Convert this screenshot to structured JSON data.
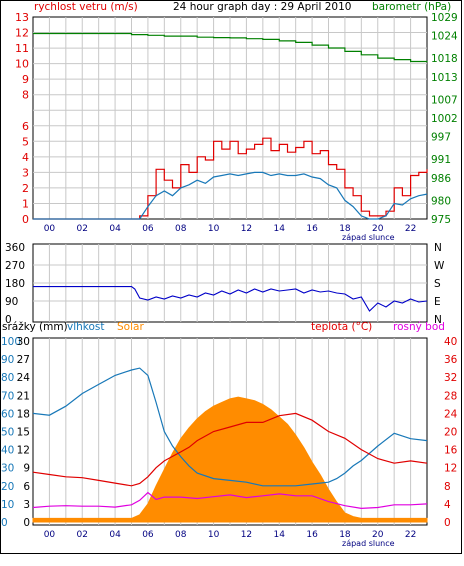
{
  "chart_data": [
    {
      "type": "line",
      "title": "24 hour graph day : 29 April 2010",
      "left_axis": {
        "label": "rychlost vetru (m/s)",
        "ticks": [
          0,
          1,
          2,
          3,
          4,
          5,
          6,
          8,
          9,
          10,
          11,
          12,
          13
        ],
        "ylim": [
          0,
          13
        ],
        "color": "#e00000"
      },
      "right_axis": {
        "label": "barometr (hPa)",
        "ticks": [
          975,
          980,
          986,
          991,
          997,
          1002,
          1007,
          1013,
          1018,
          1024,
          1029
        ],
        "ylim": [
          975,
          1029
        ],
        "color": "#008000"
      },
      "x_ticks": [
        "00",
        "02",
        "04",
        "06",
        "08",
        "10",
        "12",
        "14",
        "16",
        "18",
        "20",
        "22"
      ],
      "x_note": "západ slunce",
      "series": [
        {
          "name": "barometr",
          "color": "#008000",
          "x": [
            0,
            1,
            2,
            3,
            4,
            5,
            6,
            7,
            8,
            9,
            10,
            11,
            12,
            13,
            14,
            15,
            16,
            17,
            18,
            19,
            20,
            21,
            22,
            23,
            24
          ],
          "values": [
            1024.6,
            1024.6,
            1024.6,
            1024.6,
            1024.6,
            1024.6,
            1024.3,
            1024.1,
            1023.9,
            1023.9,
            1023.6,
            1023.5,
            1023.4,
            1023.2,
            1023.0,
            1022.6,
            1022.2,
            1021.5,
            1020.7,
            1019.8,
            1018.9,
            1018.0,
            1017.6,
            1017.1,
            1016.9
          ]
        },
        {
          "name": "wind gust",
          "color": "#e00000",
          "x": [
            0,
            6.5,
            7,
            7.5,
            8,
            8.5,
            9,
            9.5,
            10,
            10.5,
            11,
            11.5,
            12,
            12.5,
            13,
            13.5,
            14,
            14.5,
            15,
            15.5,
            16,
            16.5,
            17,
            17.5,
            18,
            18.5,
            19,
            19.5,
            20,
            20.5,
            21,
            21.5,
            22,
            22.5,
            23,
            23.5,
            24
          ],
          "values": [
            0,
            0.2,
            1.5,
            3.2,
            2.5,
            2.0,
            3.5,
            3.0,
            4.0,
            3.8,
            5.0,
            4.5,
            5.0,
            4.2,
            4.5,
            4.8,
            5.2,
            4.4,
            4.8,
            4.3,
            4.6,
            5.0,
            4.2,
            4.4,
            3.5,
            3.2,
            2.0,
            1.5,
            0.5,
            0.2,
            0.2,
            0.5,
            2.0,
            1.5,
            2.8,
            3.0,
            3.2
          ]
        },
        {
          "name": "wind avg",
          "color": "#1878b8",
          "x": [
            0,
            6.5,
            7,
            7.5,
            8,
            8.5,
            9,
            9.5,
            10,
            10.5,
            11,
            11.5,
            12,
            12.5,
            13,
            13.5,
            14,
            14.5,
            15,
            15.5,
            16,
            16.5,
            17,
            17.5,
            18,
            18.5,
            19,
            19.5,
            20,
            20.5,
            21,
            21.5,
            22,
            22.5,
            23,
            23.5,
            24
          ],
          "values": [
            0,
            0,
            0.8,
            1.5,
            1.8,
            1.5,
            2.0,
            2.2,
            2.5,
            2.3,
            2.7,
            2.8,
            2.9,
            2.8,
            2.9,
            3.0,
            3.0,
            2.8,
            2.9,
            2.8,
            2.8,
            2.9,
            2.7,
            2.6,
            2.2,
            2.0,
            1.2,
            0.8,
            0.2,
            0,
            0,
            0.2,
            1.0,
            0.9,
            1.3,
            1.5,
            1.6
          ]
        }
      ]
    },
    {
      "type": "line",
      "left_axis": {
        "ticks": [
          0,
          90,
          180,
          270,
          360
        ],
        "ylim": [
          0,
          360
        ]
      },
      "right_axis": {
        "ticks": [
          "N",
          "W",
          "S",
          "E",
          "N"
        ]
      },
      "x_ticks": [
        "00",
        "02",
        "04",
        "06",
        "08",
        "10",
        "12",
        "14",
        "16",
        "18",
        "20",
        "22"
      ],
      "series": [
        {
          "name": "wind direction",
          "color": "#0000c8",
          "x": [
            0,
            6,
            6.2,
            6.5,
            7,
            7.5,
            8,
            8.5,
            9,
            9.5,
            10,
            10.5,
            11,
            11.5,
            12,
            12.5,
            13,
            13.5,
            14,
            14.5,
            15,
            15.5,
            16,
            16.5,
            17,
            17.5,
            18,
            18.5,
            19,
            19.5,
            20,
            20.5,
            21,
            21.5,
            22,
            22.5,
            23,
            23.5,
            24
          ],
          "values": [
            162,
            162,
            150,
            105,
            95,
            110,
            100,
            115,
            105,
            120,
            110,
            130,
            120,
            140,
            125,
            145,
            130,
            150,
            135,
            150,
            140,
            145,
            150,
            130,
            145,
            135,
            140,
            130,
            125,
            100,
            110,
            40,
            80,
            60,
            90,
            80,
            100,
            85,
            90
          ]
        }
      ]
    },
    {
      "type": "line",
      "left_axis_1": {
        "label": "srážky (mm)",
        "ticks": [
          0,
          3,
          6,
          9,
          12,
          15,
          18,
          21,
          24,
          27,
          30
        ],
        "ylim": [
          0,
          30
        ]
      },
      "left_axis_2": {
        "label": "vlhkost",
        "ticks": [
          0,
          10,
          20,
          30,
          40,
          50,
          60,
          70,
          80,
          90,
          100
        ],
        "ylim": [
          0,
          100
        ],
        "color": "#1878b8"
      },
      "solar_label": "Solar",
      "temp_label": "teplota (°C)",
      "dew_label": "rosný bod",
      "right_axis": {
        "ticks": [
          0,
          4,
          8,
          12,
          16,
          20,
          24,
          28,
          32,
          36,
          40
        ],
        "ylim": [
          0,
          40
        ],
        "color": "#e00000"
      },
      "x_ticks": [
        "00",
        "02",
        "04",
        "06",
        "08",
        "10",
        "12",
        "14",
        "16",
        "18",
        "20",
        "22"
      ],
      "x_note": "západ slunce",
      "series": [
        {
          "name": "Solar",
          "color": "#ff8c00",
          "x": [
            0,
            6,
            6.5,
            7,
            7.5,
            8,
            8.5,
            9,
            9.5,
            10,
            10.5,
            11,
            11.5,
            12,
            12.5,
            13,
            13.5,
            14,
            14.5,
            15,
            15.5,
            16,
            16.5,
            17,
            17.5,
            18,
            18.5,
            19,
            19.5,
            20,
            24
          ],
          "values": [
            2,
            2,
            4,
            10,
            20,
            29,
            38,
            46,
            52,
            57,
            61,
            64,
            66,
            68,
            69,
            68,
            67,
            65,
            62,
            58,
            54,
            48,
            41,
            33,
            26,
            18,
            11,
            5,
            3,
            2,
            2
          ]
        },
        {
          "name": "vlhkost",
          "color": "#1878b8",
          "x": [
            0,
            1,
            2,
            3,
            4,
            5,
            6,
            6.5,
            7,
            7.5,
            8,
            8.5,
            9,
            9.5,
            10,
            11,
            12,
            13,
            14,
            15,
            16,
            17,
            18,
            18.5,
            19,
            19.5,
            20,
            21,
            22,
            23,
            24
          ],
          "values": [
            60,
            59,
            64,
            71,
            76,
            81,
            84,
            85,
            81,
            66,
            50,
            42,
            36,
            31,
            27,
            24,
            23,
            22,
            20,
            20,
            20,
            21,
            22,
            24,
            27,
            31,
            34,
            42,
            49,
            46,
            45
          ]
        },
        {
          "name": "teplota",
          "color": "#e00000",
          "x": [
            0,
            1,
            2,
            3,
            4,
            5,
            6,
            6.5,
            7,
            7.5,
            8,
            8.5,
            9,
            9.5,
            10,
            11,
            12,
            13,
            14,
            15,
            16,
            17,
            18,
            19,
            20,
            21,
            22,
            23,
            24
          ],
          "values": [
            11,
            10.5,
            10,
            9.8,
            9.2,
            8.6,
            8,
            8.5,
            10,
            12,
            13.5,
            14.5,
            15.5,
            16.5,
            18,
            20,
            21,
            22,
            22,
            23.5,
            24,
            22.5,
            20,
            18.5,
            16,
            14,
            13,
            13.5,
            13
          ]
        },
        {
          "name": "rosný bod",
          "color": "#e000e0",
          "x": [
            0,
            1,
            2,
            3,
            4,
            5,
            6,
            6.5,
            7,
            7.5,
            8,
            9,
            10,
            11,
            12,
            13,
            14,
            15,
            16,
            17,
            18,
            19,
            20,
            21,
            22,
            23,
            24
          ],
          "values": [
            3.2,
            3.5,
            3.6,
            3.5,
            3.5,
            3.3,
            3.8,
            4.8,
            6.5,
            5.0,
            5.5,
            5.5,
            5.2,
            5.6,
            6.0,
            5.4,
            5.8,
            6.2,
            5.8,
            5.8,
            4.5,
            3.6,
            3.0,
            3.2,
            3.8,
            3.8,
            4.0
          ]
        }
      ]
    }
  ]
}
